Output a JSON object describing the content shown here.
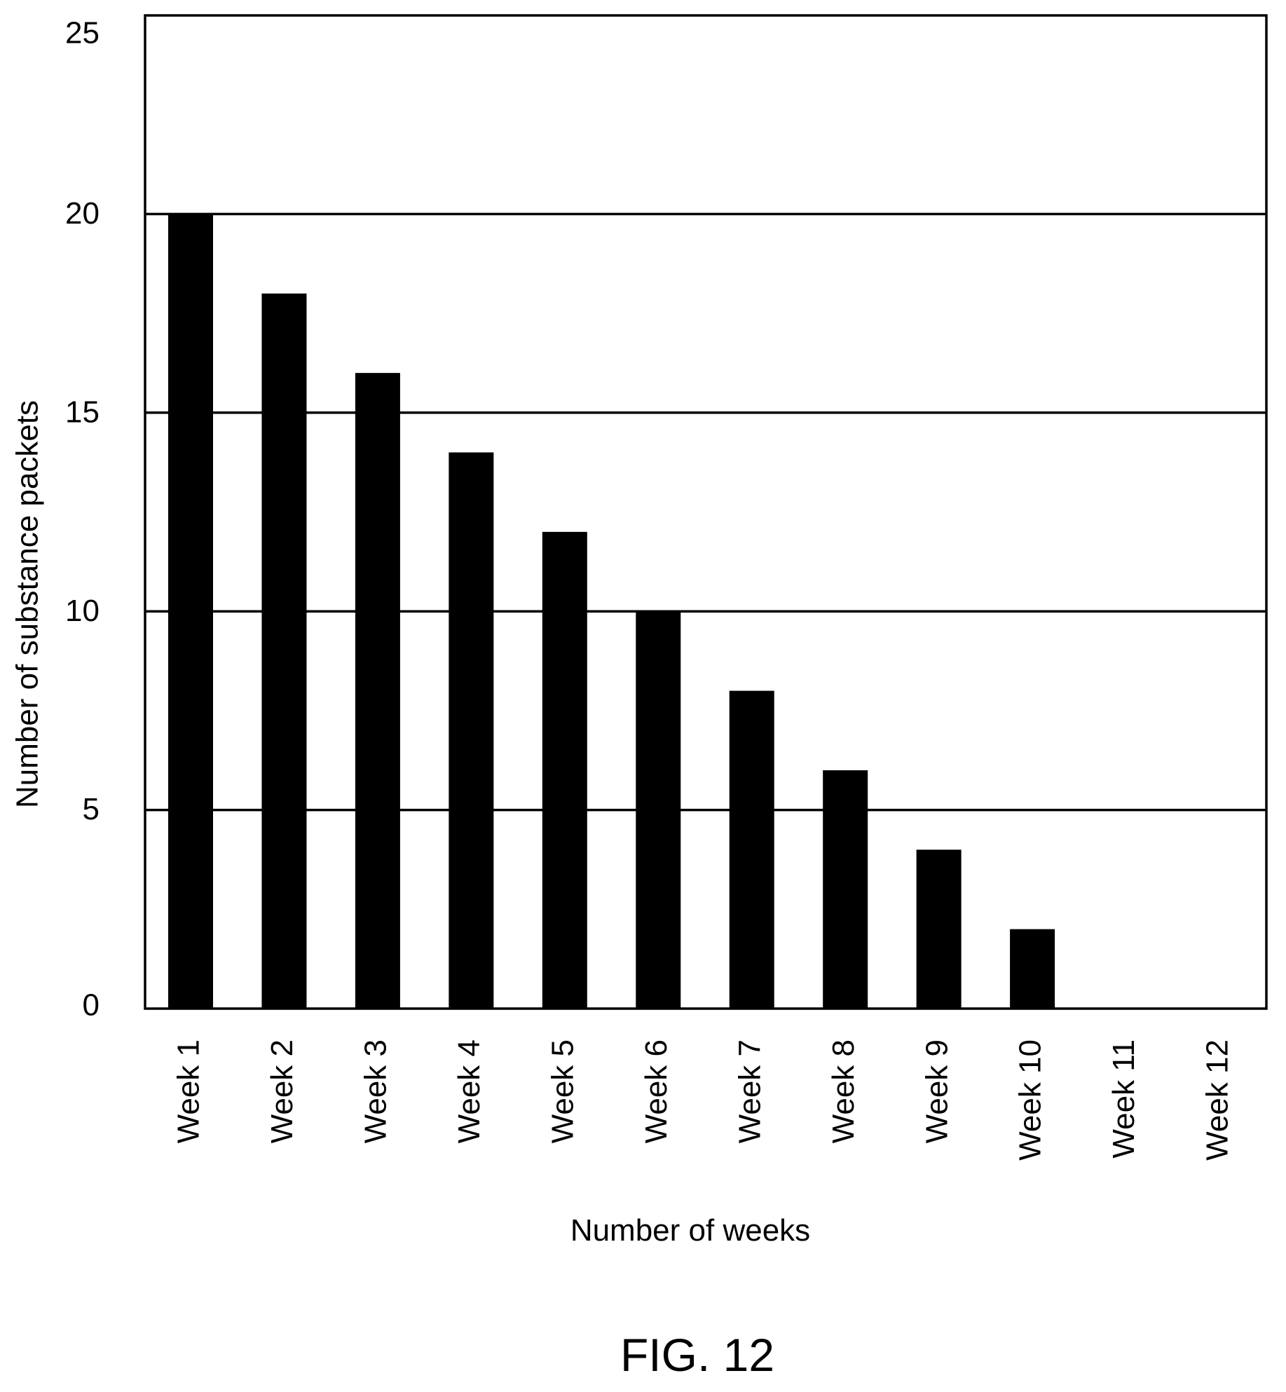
{
  "chart_data": {
    "type": "bar",
    "categories": [
      "Week 1",
      "Week 2",
      "Week 3",
      "Week 4",
      "Week 5",
      "Week 6",
      "Week 7",
      "Week 8",
      "Week 9",
      "Week 10",
      "Week 11",
      "Week 12"
    ],
    "values": [
      20,
      18,
      16,
      14,
      12,
      10,
      8,
      6,
      4,
      2,
      0,
      0
    ],
    "title": "",
    "xlabel": "Number of weeks",
    "ylabel": "Number of substance packets",
    "ylim": [
      0,
      25
    ],
    "yticks": [
      "0",
      "5",
      "10",
      "15",
      "20",
      "25"
    ],
    "grid": true,
    "bar_color": "#000000"
  },
  "figure": {
    "caption": "FIG. 12"
  }
}
